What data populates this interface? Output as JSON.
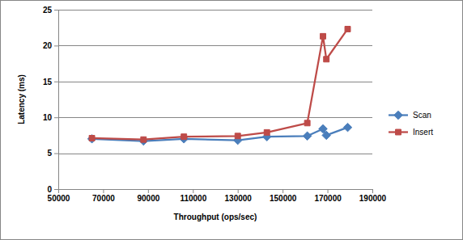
{
  "chart_data": {
    "type": "line",
    "x_label": "Throughput (ops/sec)",
    "y_label": "Latency (ms)",
    "x": [
      65000,
      88000,
      106000,
      130000,
      143000,
      161000,
      168000,
      169500,
      179000
    ],
    "series": [
      {
        "name": "Scan",
        "color": "#4a7ebb",
        "marker": "diamond",
        "values": [
          7.0,
          6.7,
          7.0,
          6.8,
          7.3,
          7.4,
          8.4,
          7.5,
          8.6
        ]
      },
      {
        "name": "Insert",
        "color": "#be4b48",
        "marker": "square",
        "values": [
          7.1,
          6.9,
          7.3,
          7.4,
          7.9,
          9.2,
          21.3,
          18.1,
          22.3
        ]
      }
    ],
    "xlim": [
      50000,
      190000
    ],
    "xticks": [
      50000,
      70000,
      90000,
      110000,
      130000,
      150000,
      170000,
      190000
    ],
    "ylim": [
      0,
      25
    ],
    "yticks": [
      0,
      5,
      10,
      15,
      20,
      25
    ],
    "grid": true,
    "legend": "right"
  }
}
